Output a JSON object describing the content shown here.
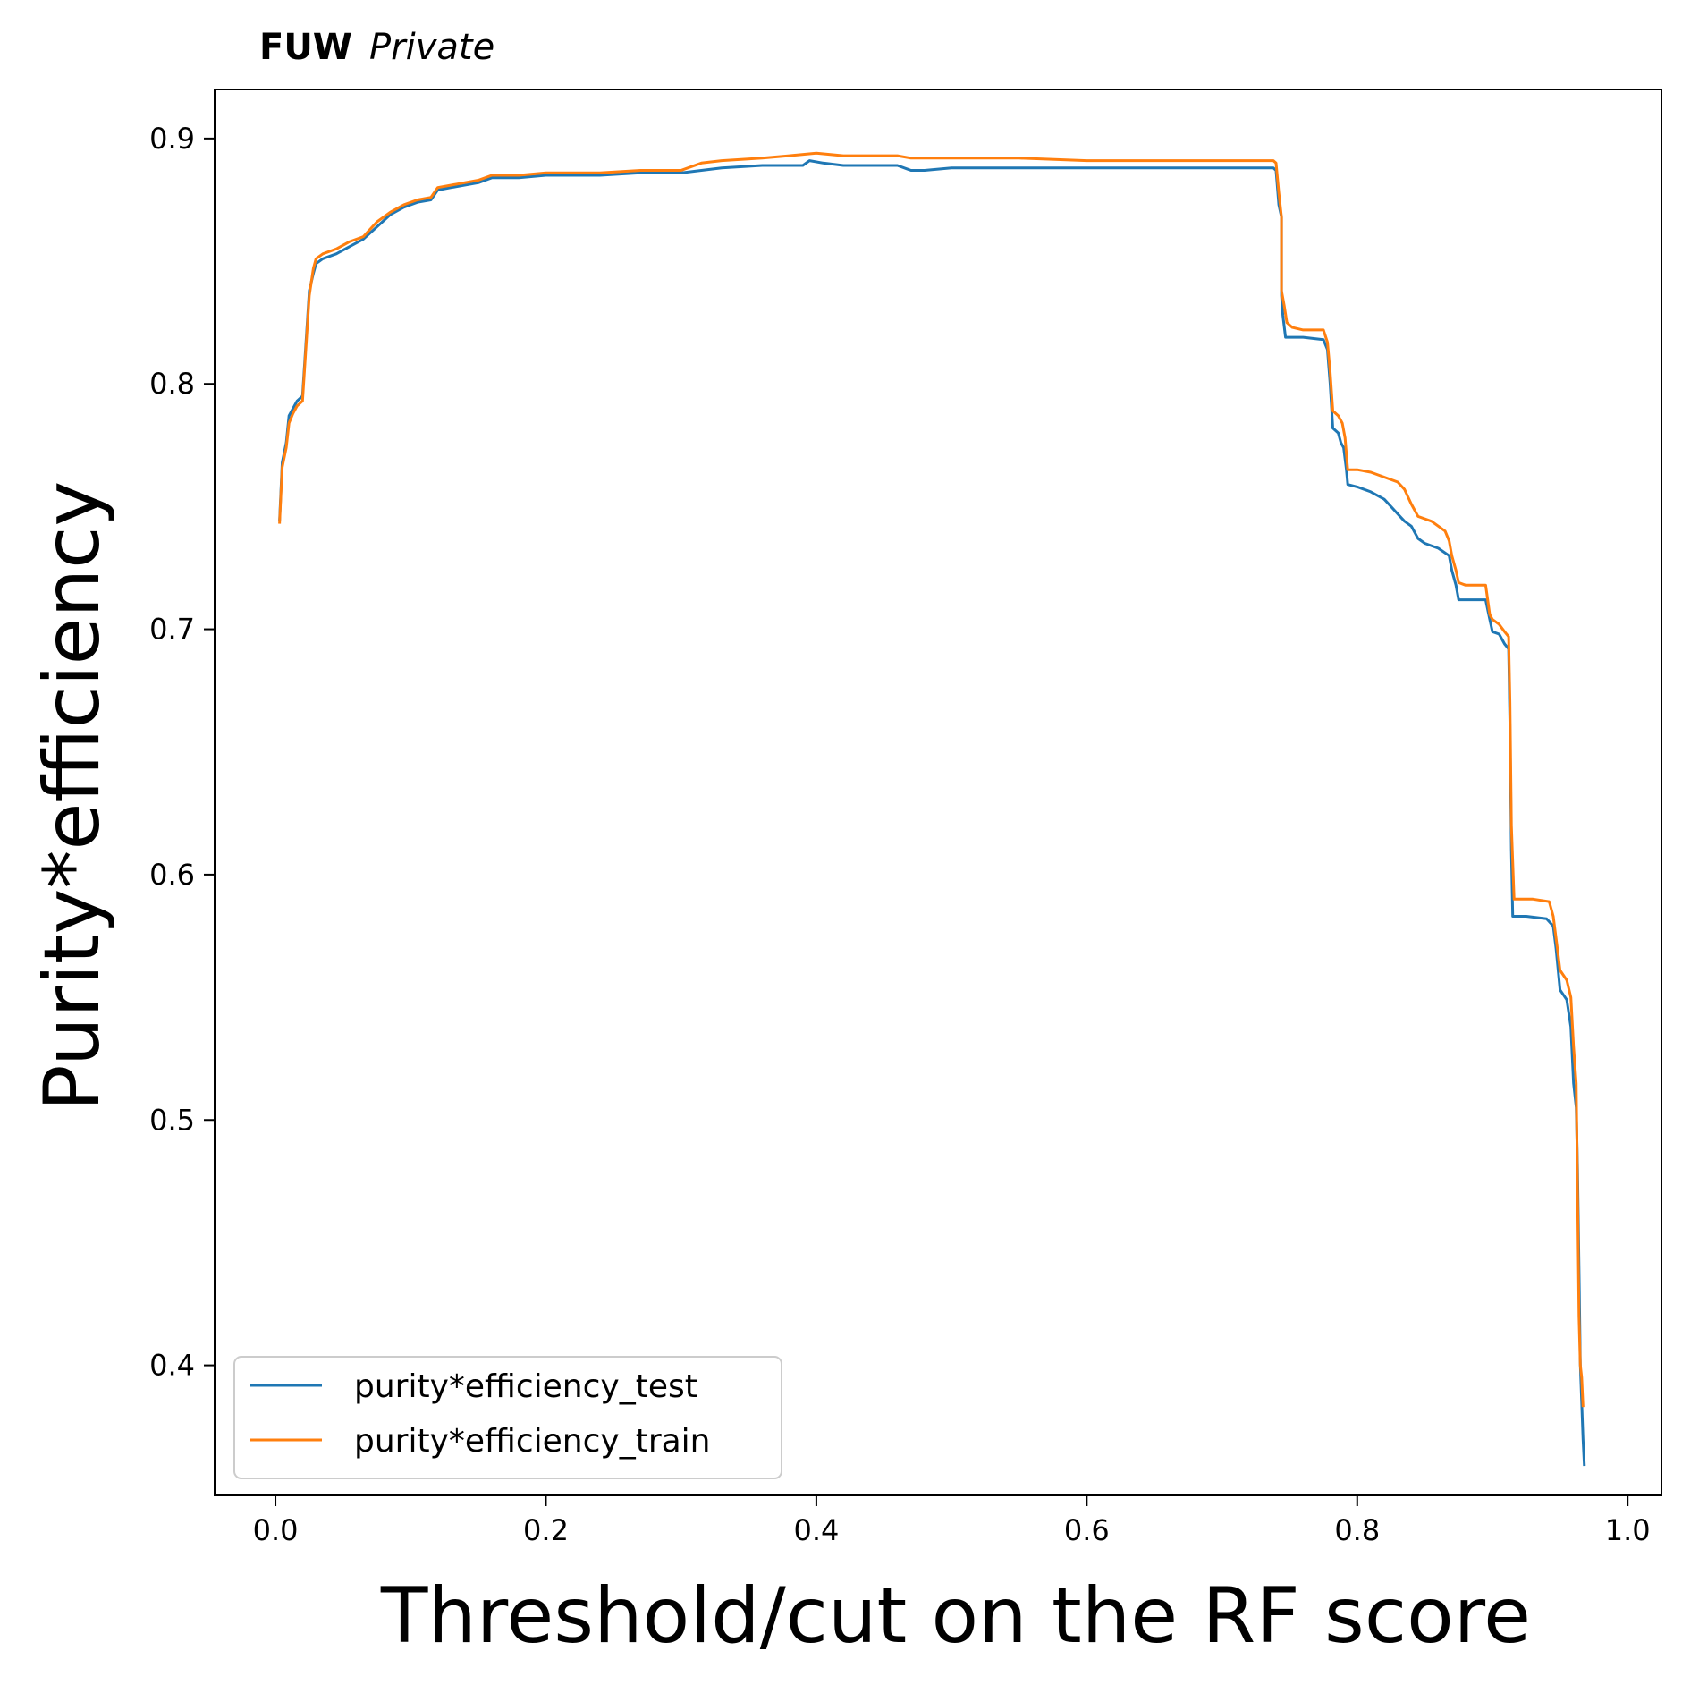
{
  "watermark": {
    "bold": "FUW",
    "italic": "Private"
  },
  "chart_data": {
    "type": "line",
    "xlabel": "Threshold/cut on the RF score",
    "ylabel": "Purity*efficiency",
    "xlim": [
      -0.045,
      1.025
    ],
    "ylim": [
      0.347,
      0.92
    ],
    "xticks": [
      0.0,
      0.2,
      0.4,
      0.6,
      0.8,
      1.0
    ],
    "xtick_labels": [
      "0.0",
      "0.2",
      "0.4",
      "0.6",
      "0.8",
      "1.0"
    ],
    "yticks": [
      0.4,
      0.5,
      0.6,
      0.7,
      0.8,
      0.9
    ],
    "ytick_labels": [
      "0.4",
      "0.5",
      "0.6",
      "0.7",
      "0.8",
      "0.9"
    ],
    "grid": false,
    "legend_position": "lower-left",
    "series": [
      {
        "name": "purity*efficiency_test",
        "color": "#1f77b4",
        "points": [
          [
            0.003,
            0.744
          ],
          [
            0.005,
            0.768
          ],
          [
            0.008,
            0.776
          ],
          [
            0.01,
            0.787
          ],
          [
            0.013,
            0.79
          ],
          [
            0.016,
            0.793
          ],
          [
            0.02,
            0.795
          ],
          [
            0.022,
            0.812
          ],
          [
            0.025,
            0.838
          ],
          [
            0.028,
            0.845
          ],
          [
            0.03,
            0.849
          ],
          [
            0.035,
            0.851
          ],
          [
            0.045,
            0.853
          ],
          [
            0.055,
            0.856
          ],
          [
            0.065,
            0.859
          ],
          [
            0.075,
            0.864
          ],
          [
            0.085,
            0.869
          ],
          [
            0.095,
            0.872
          ],
          [
            0.105,
            0.874
          ],
          [
            0.115,
            0.875
          ],
          [
            0.12,
            0.879
          ],
          [
            0.13,
            0.88
          ],
          [
            0.15,
            0.882
          ],
          [
            0.16,
            0.884
          ],
          [
            0.18,
            0.884
          ],
          [
            0.2,
            0.885
          ],
          [
            0.24,
            0.885
          ],
          [
            0.27,
            0.886
          ],
          [
            0.3,
            0.886
          ],
          [
            0.315,
            0.887
          ],
          [
            0.33,
            0.888
          ],
          [
            0.36,
            0.889
          ],
          [
            0.39,
            0.889
          ],
          [
            0.395,
            0.891
          ],
          [
            0.405,
            0.89
          ],
          [
            0.42,
            0.889
          ],
          [
            0.46,
            0.889
          ],
          [
            0.47,
            0.887
          ],
          [
            0.48,
            0.887
          ],
          [
            0.5,
            0.888
          ],
          [
            0.55,
            0.888
          ],
          [
            0.6,
            0.888
          ],
          [
            0.7,
            0.888
          ],
          [
            0.738,
            0.888
          ],
          [
            0.74,
            0.887
          ],
          [
            0.742,
            0.873
          ],
          [
            0.744,
            0.868
          ],
          [
            0.744,
            0.836
          ],
          [
            0.745,
            0.828
          ],
          [
            0.747,
            0.819
          ],
          [
            0.76,
            0.819
          ],
          [
            0.775,
            0.818
          ],
          [
            0.778,
            0.814
          ],
          [
            0.78,
            0.8
          ],
          [
            0.782,
            0.782
          ],
          [
            0.786,
            0.78
          ],
          [
            0.788,
            0.776
          ],
          [
            0.79,
            0.774
          ],
          [
            0.792,
            0.765
          ],
          [
            0.793,
            0.759
          ],
          [
            0.8,
            0.758
          ],
          [
            0.81,
            0.756
          ],
          [
            0.82,
            0.753
          ],
          [
            0.825,
            0.75
          ],
          [
            0.83,
            0.747
          ],
          [
            0.835,
            0.744
          ],
          [
            0.84,
            0.742
          ],
          [
            0.845,
            0.737
          ],
          [
            0.85,
            0.735
          ],
          [
            0.86,
            0.733
          ],
          [
            0.868,
            0.73
          ],
          [
            0.87,
            0.724
          ],
          [
            0.873,
            0.718
          ],
          [
            0.875,
            0.712
          ],
          [
            0.88,
            0.712
          ],
          [
            0.895,
            0.712
          ],
          [
            0.898,
            0.704
          ],
          [
            0.9,
            0.699
          ],
          [
            0.905,
            0.698
          ],
          [
            0.909,
            0.694
          ],
          [
            0.912,
            0.692
          ],
          [
            0.913,
            0.66
          ],
          [
            0.914,
            0.61
          ],
          [
            0.915,
            0.583
          ],
          [
            0.925,
            0.583
          ],
          [
            0.94,
            0.582
          ],
          [
            0.945,
            0.579
          ],
          [
            0.947,
            0.57
          ],
          [
            0.95,
            0.553
          ],
          [
            0.955,
            0.549
          ],
          [
            0.958,
            0.538
          ],
          [
            0.96,
            0.515
          ],
          [
            0.962,
            0.505
          ],
          [
            0.963,
            0.48
          ],
          [
            0.964,
            0.44
          ],
          [
            0.965,
            0.4
          ],
          [
            0.966,
            0.385
          ],
          [
            0.967,
            0.37
          ],
          [
            0.968,
            0.359
          ]
        ]
      },
      {
        "name": "purity*efficiency_train",
        "color": "#ff7f0e",
        "points": [
          [
            0.003,
            0.743
          ],
          [
            0.005,
            0.766
          ],
          [
            0.008,
            0.774
          ],
          [
            0.01,
            0.784
          ],
          [
            0.013,
            0.788
          ],
          [
            0.016,
            0.791
          ],
          [
            0.02,
            0.793
          ],
          [
            0.022,
            0.81
          ],
          [
            0.025,
            0.836
          ],
          [
            0.028,
            0.847
          ],
          [
            0.03,
            0.851
          ],
          [
            0.035,
            0.853
          ],
          [
            0.045,
            0.855
          ],
          [
            0.055,
            0.858
          ],
          [
            0.065,
            0.86
          ],
          [
            0.075,
            0.866
          ],
          [
            0.085,
            0.87
          ],
          [
            0.095,
            0.873
          ],
          [
            0.105,
            0.875
          ],
          [
            0.115,
            0.876
          ],
          [
            0.12,
            0.88
          ],
          [
            0.13,
            0.881
          ],
          [
            0.15,
            0.883
          ],
          [
            0.16,
            0.885
          ],
          [
            0.18,
            0.885
          ],
          [
            0.2,
            0.886
          ],
          [
            0.24,
            0.886
          ],
          [
            0.27,
            0.887
          ],
          [
            0.3,
            0.887
          ],
          [
            0.315,
            0.89
          ],
          [
            0.33,
            0.891
          ],
          [
            0.36,
            0.892
          ],
          [
            0.38,
            0.893
          ],
          [
            0.4,
            0.894
          ],
          [
            0.42,
            0.893
          ],
          [
            0.46,
            0.893
          ],
          [
            0.47,
            0.892
          ],
          [
            0.5,
            0.892
          ],
          [
            0.55,
            0.892
          ],
          [
            0.6,
            0.891
          ],
          [
            0.7,
            0.891
          ],
          [
            0.738,
            0.891
          ],
          [
            0.74,
            0.89
          ],
          [
            0.742,
            0.878
          ],
          [
            0.744,
            0.868
          ],
          [
            0.744,
            0.838
          ],
          [
            0.746,
            0.832
          ],
          [
            0.748,
            0.825
          ],
          [
            0.752,
            0.823
          ],
          [
            0.76,
            0.822
          ],
          [
            0.775,
            0.822
          ],
          [
            0.778,
            0.817
          ],
          [
            0.78,
            0.805
          ],
          [
            0.782,
            0.789
          ],
          [
            0.786,
            0.787
          ],
          [
            0.789,
            0.784
          ],
          [
            0.791,
            0.778
          ],
          [
            0.793,
            0.765
          ],
          [
            0.8,
            0.765
          ],
          [
            0.81,
            0.764
          ],
          [
            0.82,
            0.762
          ],
          [
            0.83,
            0.76
          ],
          [
            0.835,
            0.757
          ],
          [
            0.84,
            0.751
          ],
          [
            0.845,
            0.746
          ],
          [
            0.855,
            0.744
          ],
          [
            0.86,
            0.742
          ],
          [
            0.865,
            0.74
          ],
          [
            0.868,
            0.736
          ],
          [
            0.87,
            0.73
          ],
          [
            0.873,
            0.724
          ],
          [
            0.875,
            0.719
          ],
          [
            0.88,
            0.718
          ],
          [
            0.895,
            0.718
          ],
          [
            0.898,
            0.706
          ],
          [
            0.9,
            0.704
          ],
          [
            0.905,
            0.702
          ],
          [
            0.909,
            0.699
          ],
          [
            0.912,
            0.697
          ],
          [
            0.913,
            0.67
          ],
          [
            0.914,
            0.62
          ],
          [
            0.916,
            0.59
          ],
          [
            0.93,
            0.59
          ],
          [
            0.942,
            0.589
          ],
          [
            0.945,
            0.583
          ],
          [
            0.948,
            0.57
          ],
          [
            0.95,
            0.561
          ],
          [
            0.955,
            0.557
          ],
          [
            0.958,
            0.55
          ],
          [
            0.96,
            0.53
          ],
          [
            0.962,
            0.515
          ],
          [
            0.963,
            0.47
          ],
          [
            0.964,
            0.42
          ],
          [
            0.965,
            0.4
          ],
          [
            0.966,
            0.395
          ],
          [
            0.967,
            0.383
          ]
        ]
      }
    ]
  }
}
